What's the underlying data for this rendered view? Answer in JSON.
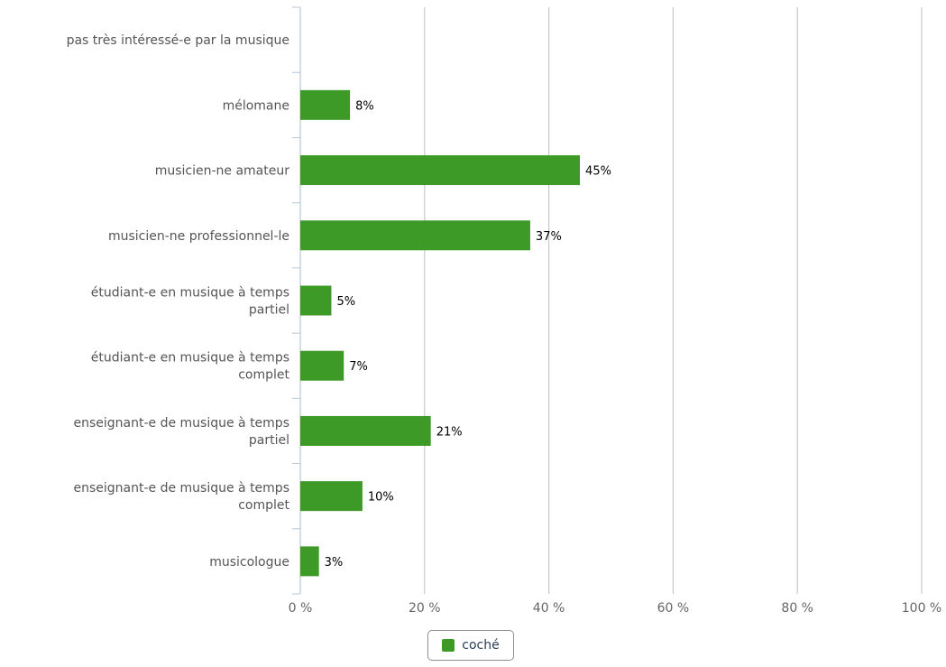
{
  "chart_data": {
    "type": "bar",
    "orientation": "horizontal",
    "categories": [
      [
        "pas très intéressé-e par la musique"
      ],
      [
        "mélomane"
      ],
      [
        "musicien-ne amateur"
      ],
      [
        "musicien-ne professionnel-le"
      ],
      [
        "étudiant-e en musique à temps",
        "partiel"
      ],
      [
        "étudiant-e en musique à temps",
        "complet"
      ],
      [
        "enseignant-e de musique à temps",
        "partiel"
      ],
      [
        "enseignant-e de musique à temps",
        "complet"
      ],
      [
        "musicologue"
      ]
    ],
    "series": [
      {
        "name": "coché",
        "color": "#3d9a27",
        "values": [
          0,
          8,
          45,
          37,
          5,
          7,
          21,
          10,
          3
        ],
        "data_labels": [
          "",
          "8%",
          "45%",
          "37%",
          "5%",
          "7%",
          "21%",
          "10%",
          "3%"
        ]
      }
    ],
    "xlim": [
      0,
      100
    ],
    "x_ticks": [
      0,
      20,
      40,
      60,
      80,
      100
    ],
    "x_tick_labels": [
      "0 %",
      "20 %",
      "40 %",
      "60 %",
      "80 %",
      "100 %"
    ],
    "grid": true,
    "legend_position": "bottom-center",
    "title": "",
    "xlabel": "",
    "ylabel": ""
  },
  "legend": {
    "label": "coché",
    "color": "#3d9a27"
  }
}
